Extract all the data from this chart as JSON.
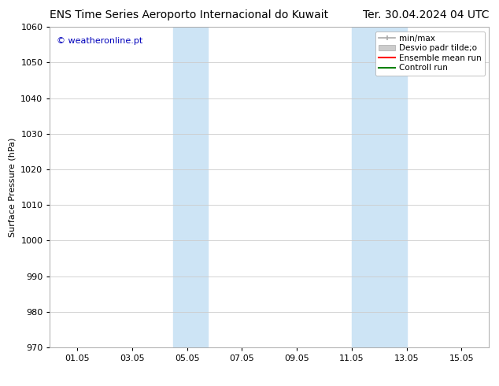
{
  "title_left": "ENS Time Series Aeroporto Internacional do Kuwait",
  "title_right": "Ter. 30.04.2024 04 UTC",
  "ylabel": "Surface Pressure (hPa)",
  "ylim": [
    970,
    1060
  ],
  "yticks": [
    970,
    980,
    990,
    1000,
    1010,
    1020,
    1030,
    1040,
    1050,
    1060
  ],
  "xtick_labels": [
    "01.05",
    "03.05",
    "05.05",
    "07.05",
    "09.05",
    "11.05",
    "13.05",
    "15.05"
  ],
  "xtick_positions": [
    1,
    3,
    5,
    7,
    9,
    11,
    13,
    15
  ],
  "xlim": [
    0.0,
    16.0
  ],
  "shaded_bands": [
    {
      "x_start": 4.5,
      "x_end": 5.75
    },
    {
      "x_start": 11.0,
      "x_end": 13.0
    }
  ],
  "shaded_color": "#cde4f5",
  "watermark": "© weatheronline.pt",
  "watermark_color": "#0000bb",
  "background_color": "#ffffff",
  "grid_color": "#cccccc",
  "title_fontsize": 10,
  "axis_label_fontsize": 8,
  "tick_fontsize": 8,
  "legend_fontsize": 7.5,
  "legend_min_max_color": "#aaaaaa",
  "legend_std_color": "#cccccc",
  "legend_mean_color": "#ff0000",
  "legend_ctrl_color": "#008000"
}
